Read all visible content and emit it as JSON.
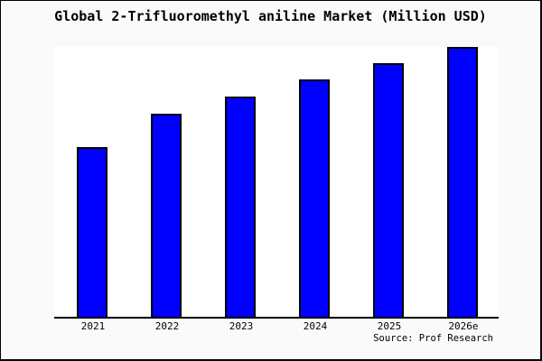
{
  "figure": {
    "bg_color": "#fafafa",
    "frame_border_color": "#000000",
    "title": "Global 2-Trifluoromethyl aniline Market (Million USD)",
    "source_credit": "Source: Prof Research"
  },
  "chart_data": {
    "type": "bar",
    "title": "Global 2-Trifluoromethyl aniline Market (Million USD)",
    "categories": [
      "2021",
      "2022",
      "2023",
      "2024",
      "2025",
      "2026e"
    ],
    "values": [
      62.8,
      75.2,
      81.6,
      87.9,
      94.0,
      100.0
    ],
    "value_note": "relative bar heights as % of tallest bar (2026e); chart shows no y-axis scale or data labels",
    "xlabel": "",
    "ylabel": "",
    "ylim": [
      0,
      100
    ],
    "grid": false,
    "legend": null,
    "y_axis_shown": false,
    "x_axis_line_color": "#000000",
    "bar_fill_color": "#0000ff",
    "bar_border_color": "#000000",
    "plot_bg_color": "#ffffff",
    "source": "Source: Prof Research"
  }
}
